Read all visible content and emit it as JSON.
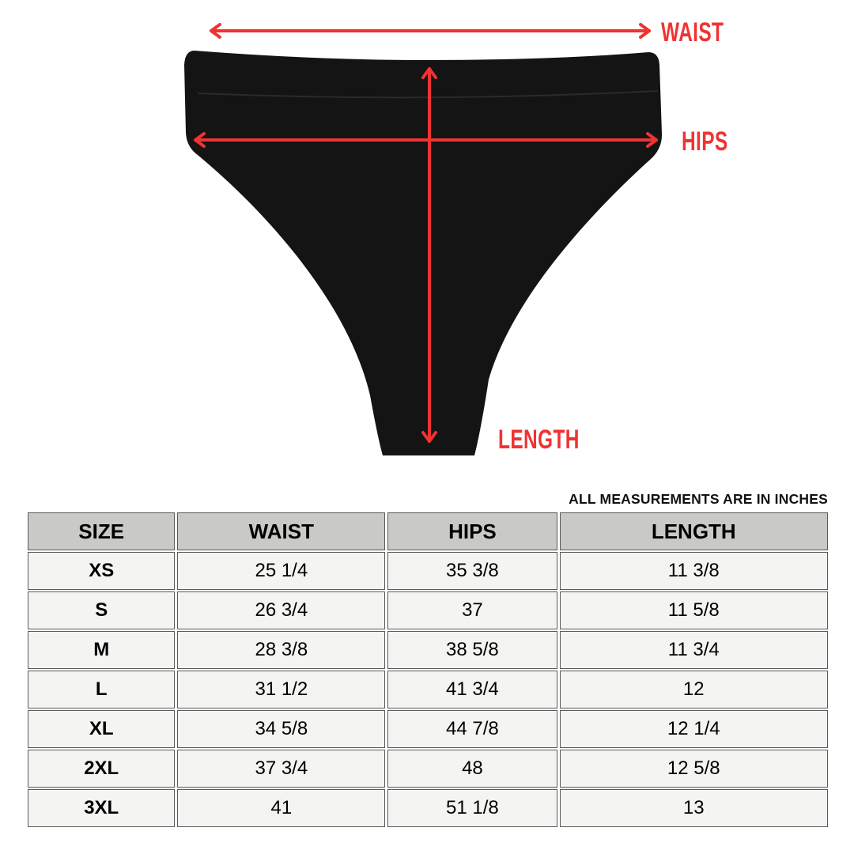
{
  "labels": {
    "waist": "WAIST",
    "hips": "HIPS",
    "length": "LENGTH"
  },
  "colors": {
    "arrow": "#ef3333",
    "garment": "#141414",
    "header_bg": "#c9c9c5",
    "cell_bg": "#f4f4f2"
  },
  "note": "ALL MEASUREMENTS ARE IN INCHES",
  "table": {
    "headers": [
      "SIZE",
      "WAIST",
      "HIPS",
      "LENGTH"
    ],
    "rows": [
      [
        "XS",
        "25 1/4",
        "35 3/8",
        "11 3/8"
      ],
      [
        "S",
        "26 3/4",
        "37",
        "11 5/8"
      ],
      [
        "M",
        "28 3/8",
        "38 5/8",
        "11 3/4"
      ],
      [
        "L",
        "31 1/2",
        "41 3/4",
        "12"
      ],
      [
        "XL",
        "34 5/8",
        "44 7/8",
        "12 1/4"
      ],
      [
        "2XL",
        "37 3/4",
        "48",
        "12 5/8"
      ],
      [
        "3XL",
        "41",
        "51 1/8",
        "13"
      ]
    ]
  }
}
